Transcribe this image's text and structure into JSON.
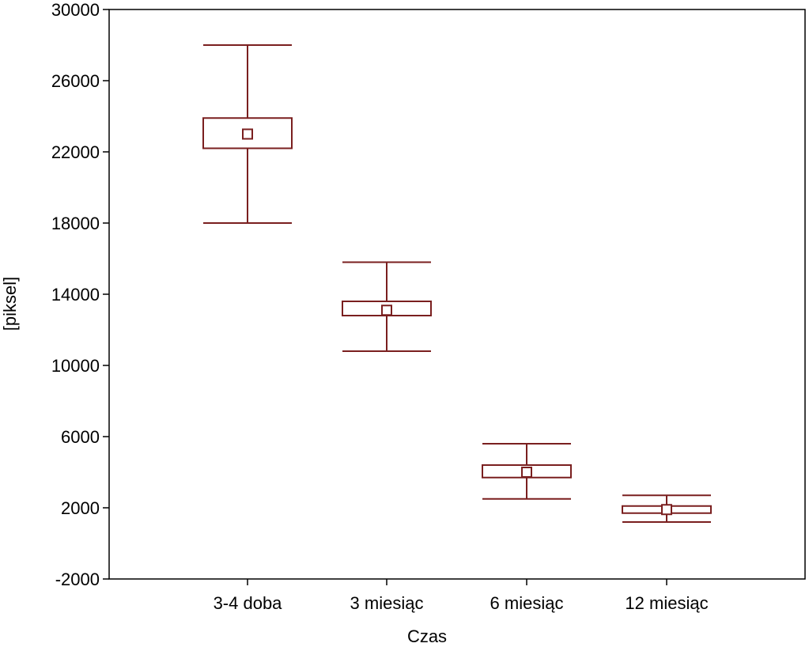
{
  "chart_data": {
    "type": "boxplot",
    "xlabel": "Czas",
    "ylabel": "[piksel]",
    "ylim": [
      -2000,
      30000
    ],
    "yticks": [
      -2000,
      2000,
      6000,
      10000,
      14000,
      18000,
      22000,
      26000,
      30000
    ],
    "categories": [
      "3-4 doba",
      "3 miesiąc",
      "6 miesiąc",
      "12 miesiąc"
    ],
    "center": [
      23000,
      13100,
      4000,
      1900
    ],
    "box_low": [
      22200,
      12800,
      3700,
      1700
    ],
    "box_high": [
      23900,
      13600,
      4400,
      2100
    ],
    "whisker_low": [
      18000,
      10800,
      2500,
      1200
    ],
    "whisker_high": [
      28000,
      15800,
      5600,
      2700
    ],
    "grid": false,
    "legend": "none",
    "colors": {
      "marks": "#7a1f1f",
      "axes": "#000000"
    }
  }
}
